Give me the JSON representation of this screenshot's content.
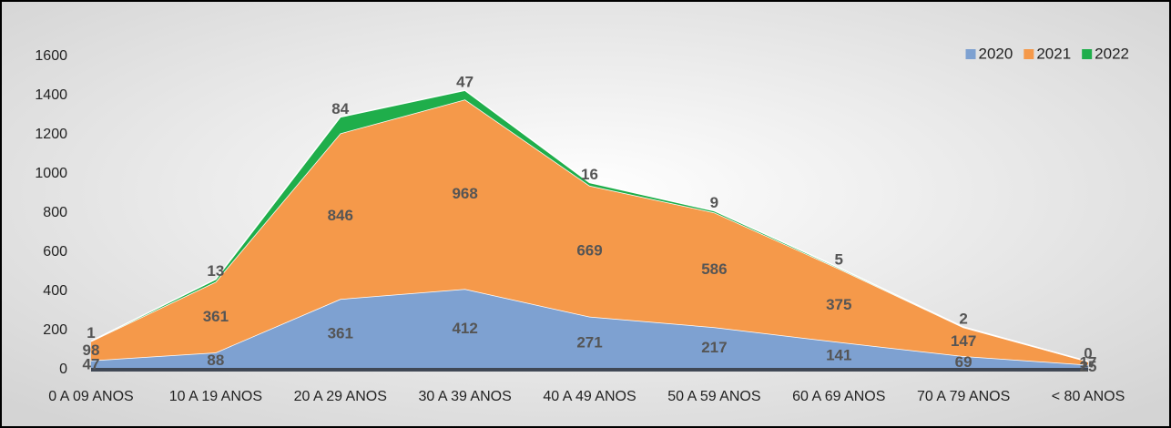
{
  "chart_data": {
    "type": "stacked_area",
    "categories": [
      "0 A 09 ANOS",
      "10 A 19 ANOS",
      "20 A 29 ANOS",
      "30 A 39 ANOS",
      "40 A 49 ANOS",
      "50 A 59 ANOS",
      "60 A 69 ANOS",
      "70 A 79 ANOS",
      "< 80 ANOS"
    ],
    "series": [
      {
        "name": "2020",
        "color": "#7ea1d1",
        "values": [
          47,
          88,
          361,
          412,
          271,
          217,
          141,
          69,
          25
        ]
      },
      {
        "name": "2021",
        "color": "#f5994a",
        "values": [
          98,
          361,
          846,
          968,
          669,
          586,
          375,
          147,
          17
        ]
      },
      {
        "name": "2022",
        "color": "#1fae4b",
        "values": [
          1,
          13,
          84,
          47,
          16,
          9,
          5,
          2,
          0
        ]
      }
    ],
    "ylim": [
      0,
      1600
    ],
    "yticks": [
      0,
      200,
      400,
      600,
      800,
      1000,
      1200,
      1400,
      1600
    ],
    "legend": "top-right"
  }
}
